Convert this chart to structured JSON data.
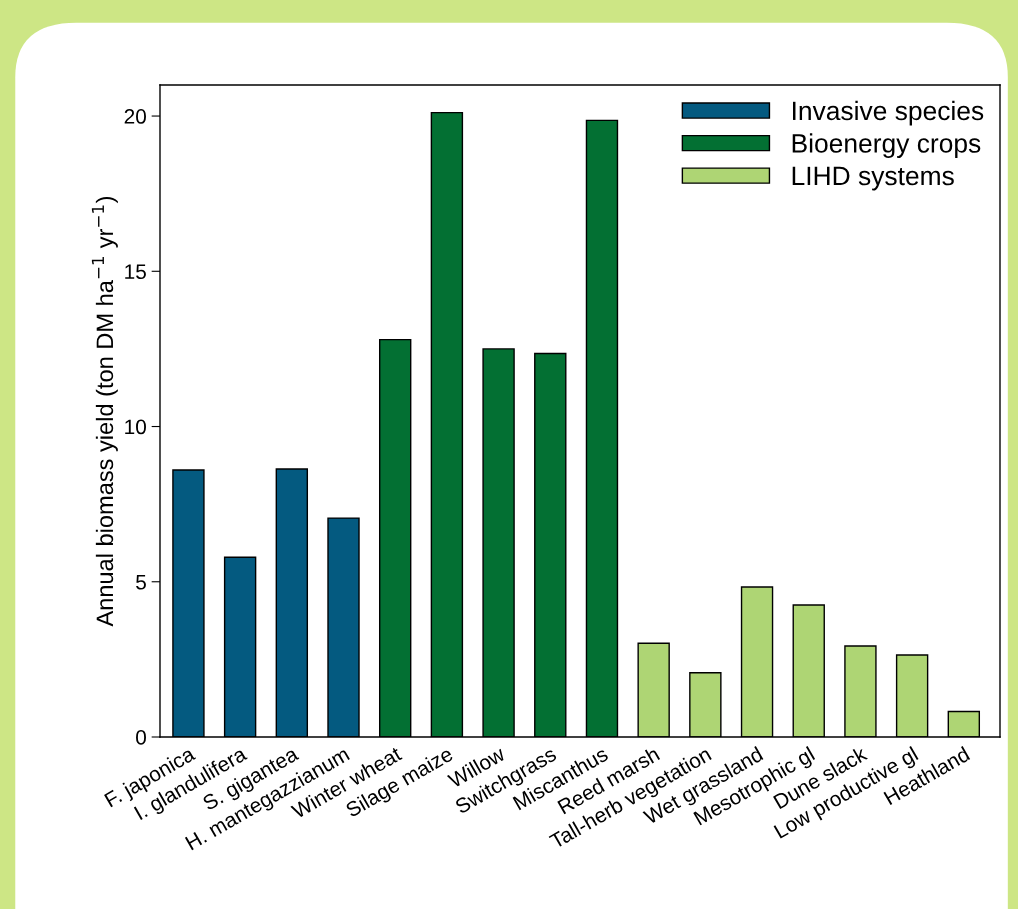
{
  "chart_data": {
    "type": "bar",
    "ylabel": "Annual biomass yield (ton DM ha$^{−1}$ yr$^{−1}$)",
    "categories": [
      "F. japonica",
      "I. glandulifera",
      "S. gigantea",
      "H. mantegazzianum",
      "Winter wheat",
      "Silage maize",
      "Willow",
      "Switchgrass",
      "Miscanthus",
      "Reed marsh",
      "Tall-herb vegetation",
      "Wet grassland",
      "Mesotrophic gl",
      "Dune slack",
      "Low productive gl",
      "Heathland"
    ],
    "series": [
      {
        "name": "Invasive species",
        "color": "#045a80",
        "values": [
          8.6,
          5.79,
          8.63,
          7.05,
          null,
          null,
          null,
          null,
          null,
          null,
          null,
          null,
          null,
          null,
          null,
          null
        ]
      },
      {
        "name": "Bioenergy crops",
        "color": "#037033",
        "values": [
          null,
          null,
          null,
          null,
          12.8,
          20.11,
          12.5,
          12.35,
          19.86,
          null,
          null,
          null,
          null,
          null,
          null,
          null
        ]
      },
      {
        "name": "LIHD systems",
        "color": "#aed574",
        "values": [
          null,
          null,
          null,
          null,
          null,
          null,
          null,
          null,
          null,
          3.02,
          2.07,
          4.83,
          4.25,
          2.93,
          2.64,
          0.82
        ]
      }
    ],
    "ylim": [
      0,
      21
    ],
    "yticks": [
      0,
      5,
      10,
      15,
      20
    ],
    "grid": false,
    "legend": "top right"
  }
}
